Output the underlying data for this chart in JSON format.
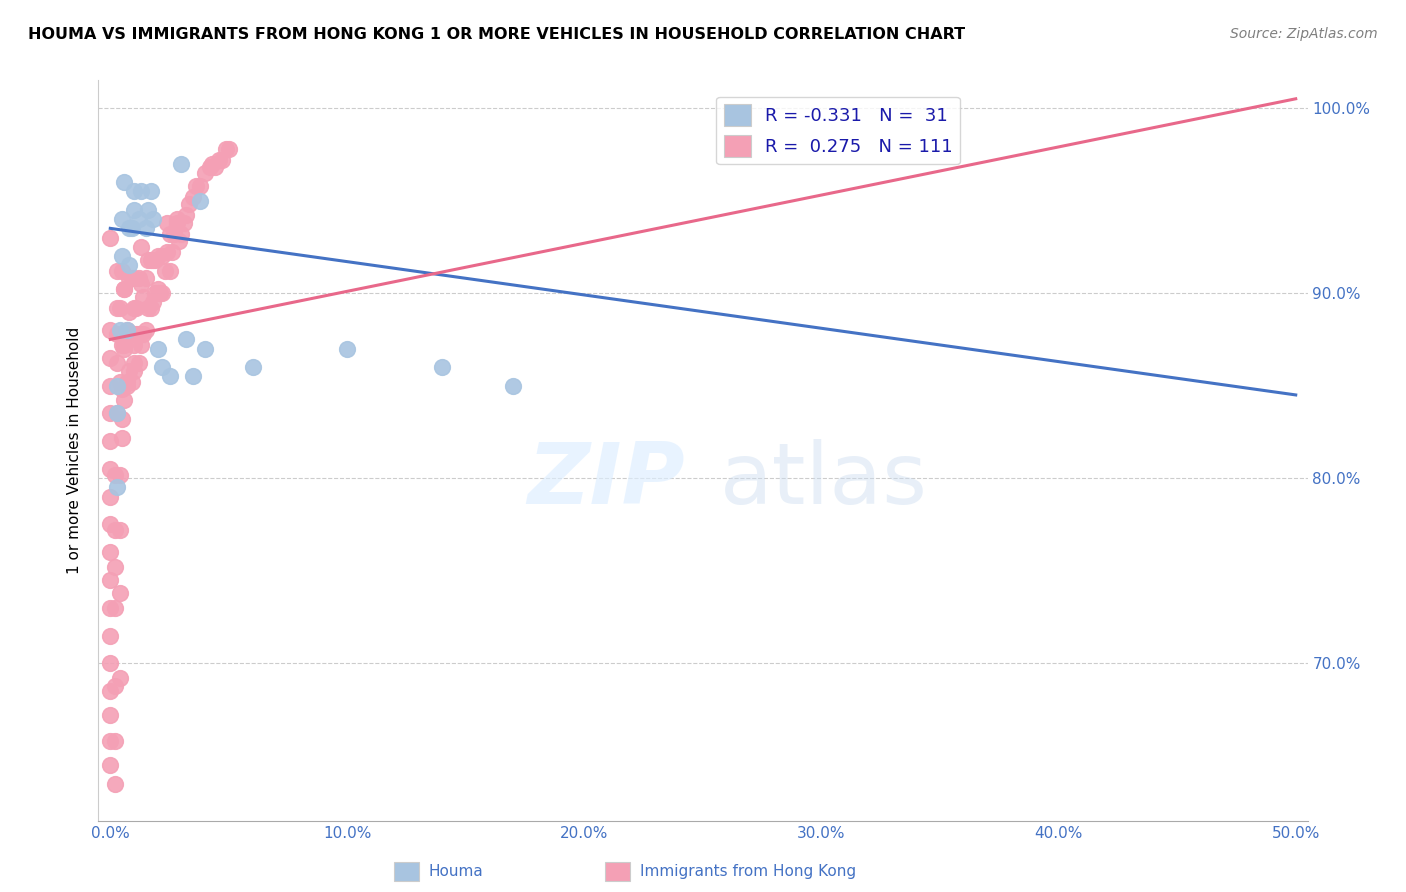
{
  "title": "HOUMA VS IMMIGRANTS FROM HONG KONG 1 OR MORE VEHICLES IN HOUSEHOLD CORRELATION CHART",
  "source": "Source: ZipAtlas.com",
  "ylabel": "1 or more Vehicles in Household",
  "xlim": [
    -0.005,
    0.505
  ],
  "ylim": [
    0.615,
    1.015
  ],
  "xtick_labels": [
    "0.0%",
    "10.0%",
    "20.0%",
    "30.0%",
    "40.0%",
    "50.0%"
  ],
  "xtick_vals": [
    0.0,
    0.1,
    0.2,
    0.3,
    0.4,
    0.5
  ],
  "ytick_labels": [
    "100.0%",
    "90.0%",
    "80.0%",
    "70.0%"
  ],
  "ytick_vals": [
    1.0,
    0.9,
    0.8,
    0.7
  ],
  "legend_r_blue": "-0.331",
  "legend_n_blue": "31",
  "legend_r_pink": "0.275",
  "legend_n_pink": "111",
  "houma_color": "#a8c4e0",
  "hk_color": "#f4a0b5",
  "trend_blue": "#4472c4",
  "trend_pink": "#e8688a",
  "blue_trend_x": [
    0.0,
    0.5
  ],
  "blue_trend_y": [
    0.935,
    0.845
  ],
  "pink_trend_x": [
    0.0,
    0.5
  ],
  "pink_trend_y": [
    0.875,
    1.005
  ],
  "blue_scatter_x": [
    0.003,
    0.003,
    0.003,
    0.004,
    0.005,
    0.005,
    0.006,
    0.007,
    0.008,
    0.008,
    0.009,
    0.01,
    0.01,
    0.012,
    0.013,
    0.015,
    0.016,
    0.017,
    0.018,
    0.02,
    0.022,
    0.025,
    0.03,
    0.032,
    0.035,
    0.038,
    0.04,
    0.06,
    0.1,
    0.14,
    0.17
  ],
  "blue_scatter_y": [
    0.795,
    0.835,
    0.85,
    0.88,
    0.92,
    0.94,
    0.96,
    0.88,
    0.915,
    0.935,
    0.935,
    0.945,
    0.955,
    0.94,
    0.955,
    0.935,
    0.945,
    0.955,
    0.94,
    0.87,
    0.86,
    0.855,
    0.97,
    0.875,
    0.855,
    0.95,
    0.87,
    0.86,
    0.87,
    0.86,
    0.85
  ],
  "pink_scatter_x": [
    0.0,
    0.0,
    0.0,
    0.0,
    0.0,
    0.0,
    0.0,
    0.0,
    0.0,
    0.0,
    0.0,
    0.0,
    0.0,
    0.0,
    0.0,
    0.0,
    0.0,
    0.0,
    0.002,
    0.002,
    0.002,
    0.002,
    0.002,
    0.002,
    0.002,
    0.003,
    0.003,
    0.003,
    0.003,
    0.003,
    0.004,
    0.004,
    0.004,
    0.004,
    0.004,
    0.004,
    0.005,
    0.005,
    0.005,
    0.005,
    0.005,
    0.006,
    0.006,
    0.006,
    0.006,
    0.006,
    0.007,
    0.007,
    0.007,
    0.007,
    0.008,
    0.008,
    0.008,
    0.009,
    0.009,
    0.009,
    0.01,
    0.01,
    0.01,
    0.01,
    0.01,
    0.011,
    0.011,
    0.012,
    0.012,
    0.012,
    0.013,
    0.013,
    0.013,
    0.014,
    0.014,
    0.015,
    0.015,
    0.016,
    0.016,
    0.017,
    0.017,
    0.018,
    0.018,
    0.019,
    0.019,
    0.02,
    0.02,
    0.021,
    0.022,
    0.022,
    0.023,
    0.024,
    0.024,
    0.025,
    0.025,
    0.026,
    0.027,
    0.028,
    0.028,
    0.029,
    0.03,
    0.031,
    0.032,
    0.033,
    0.035,
    0.036,
    0.038,
    0.04,
    0.042,
    0.043,
    0.044,
    0.046,
    0.047,
    0.049,
    0.05
  ],
  "pink_scatter_y": [
    0.645,
    0.658,
    0.672,
    0.685,
    0.7,
    0.715,
    0.73,
    0.745,
    0.76,
    0.775,
    0.79,
    0.805,
    0.82,
    0.835,
    0.85,
    0.865,
    0.88,
    0.93,
    0.635,
    0.658,
    0.688,
    0.73,
    0.752,
    0.772,
    0.802,
    0.835,
    0.862,
    0.878,
    0.892,
    0.912,
    0.692,
    0.738,
    0.772,
    0.802,
    0.852,
    0.892,
    0.832,
    0.872,
    0.912,
    0.822,
    0.848,
    0.872,
    0.902,
    0.842,
    0.87,
    0.902,
    0.852,
    0.88,
    0.85,
    0.878,
    0.908,
    0.858,
    0.89,
    0.852,
    0.878,
    0.908,
    0.858,
    0.892,
    0.872,
    0.908,
    0.862,
    0.892,
    0.878,
    0.908,
    0.862,
    0.878,
    0.905,
    0.925,
    0.872,
    0.898,
    0.878,
    0.908,
    0.88,
    0.892,
    0.918,
    0.892,
    0.918,
    0.895,
    0.918,
    0.9,
    0.918,
    0.902,
    0.92,
    0.9,
    0.9,
    0.92,
    0.912,
    0.922,
    0.938,
    0.912,
    0.932,
    0.922,
    0.932,
    0.938,
    0.94,
    0.928,
    0.932,
    0.938,
    0.942,
    0.948,
    0.952,
    0.958,
    0.958,
    0.965,
    0.968,
    0.97,
    0.968,
    0.972,
    0.972,
    0.978,
    0.978
  ]
}
